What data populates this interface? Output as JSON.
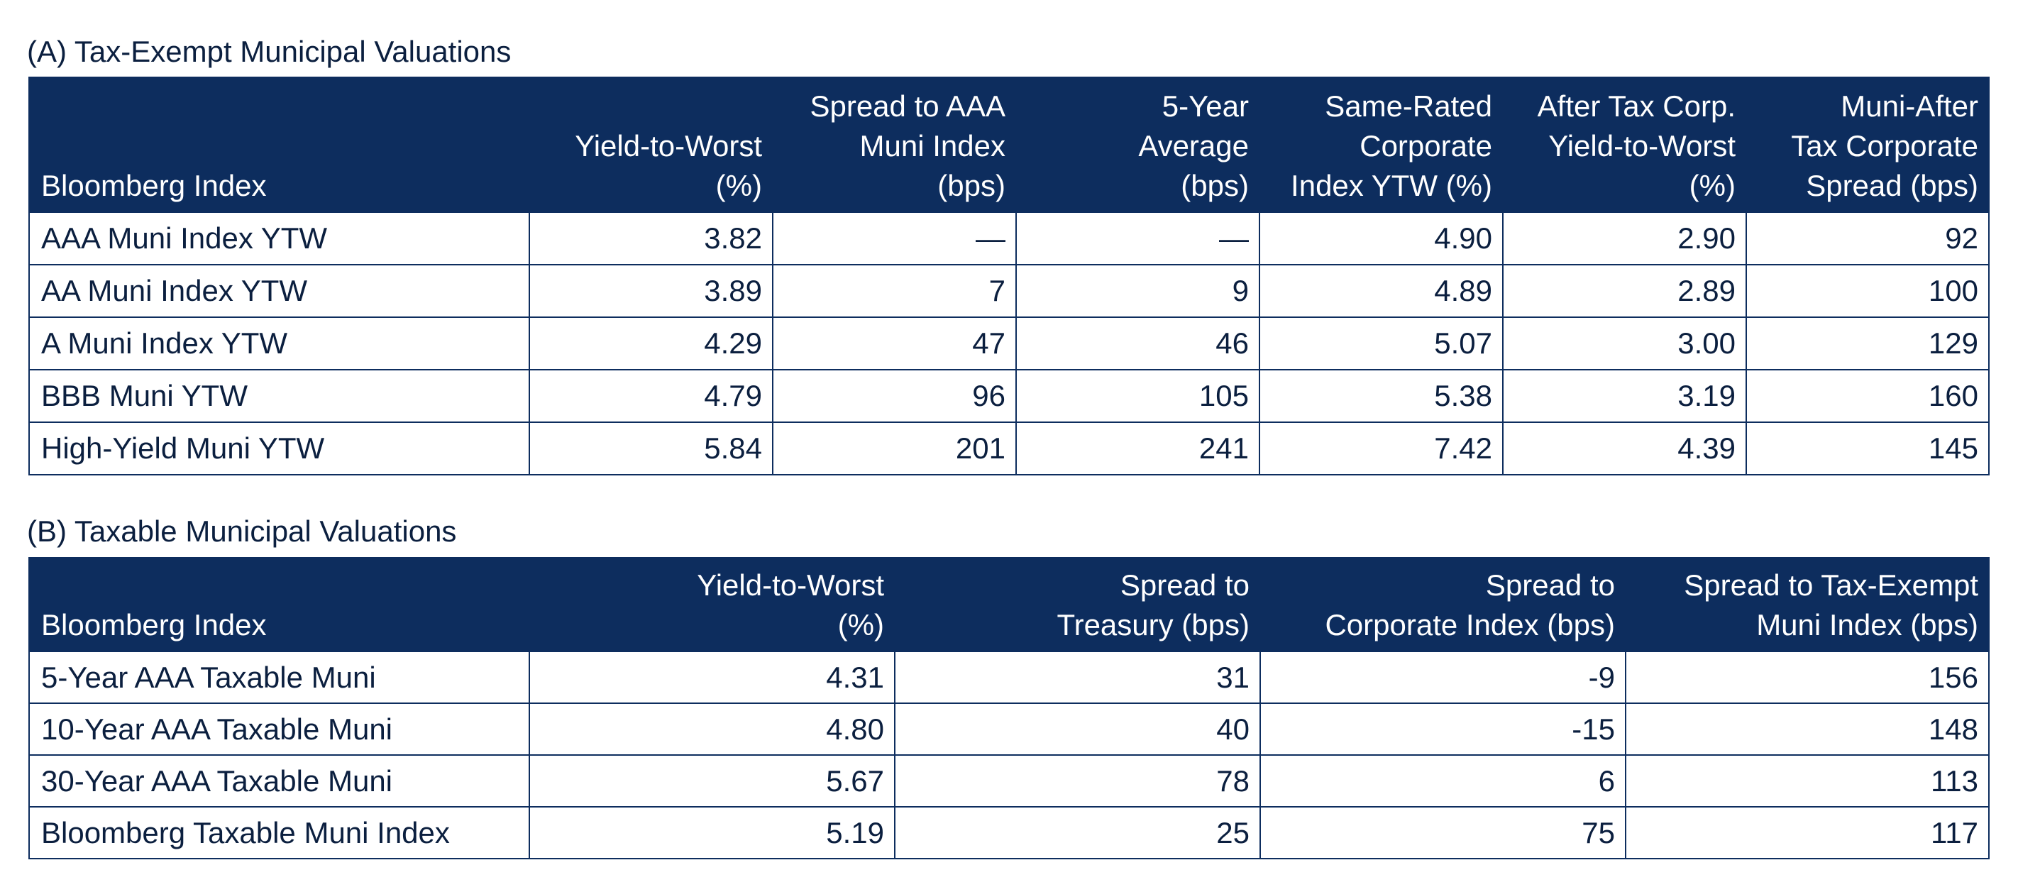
{
  "section_a": {
    "title": "(A) Tax-Exempt Municipal Valuations",
    "headers": [
      [
        "Bloomberg Index"
      ],
      [
        "Yield-to-Worst",
        "(%)"
      ],
      [
        "Spread to AAA",
        "Muni Index",
        "(bps)"
      ],
      [
        "5-Year",
        "Average",
        "(bps)"
      ],
      [
        "Same-Rated",
        "Corporate",
        "Index YTW (%)"
      ],
      [
        "After Tax Corp.",
        "Yield-to-Worst",
        "(%)"
      ],
      [
        "Muni-After",
        "Tax Corporate",
        "Spread (bps)"
      ]
    ],
    "rows": [
      [
        "AAA Muni Index YTW",
        "3.82",
        "—",
        "—",
        "4.90",
        "2.90",
        "92"
      ],
      [
        "AA Muni Index YTW",
        "3.89",
        "7",
        "9",
        "4.89",
        "2.89",
        "100"
      ],
      [
        "A Muni Index YTW",
        "4.29",
        "47",
        "46",
        "5.07",
        "3.00",
        "129"
      ],
      [
        "BBB Muni YTW",
        "4.79",
        "96",
        "105",
        "5.38",
        "3.19",
        "160"
      ],
      [
        "High-Yield Muni YTW",
        "5.84",
        "201",
        "241",
        "7.42",
        "4.39",
        "145"
      ]
    ]
  },
  "section_b": {
    "title": "(B) Taxable Municipal Valuations",
    "headers": [
      [
        "Bloomberg Index"
      ],
      [
        "Yield-to-Worst",
        "(%)"
      ],
      [
        "Spread to",
        "Treasury (bps)"
      ],
      [
        "Spread to",
        "Corporate Index (bps)"
      ],
      [
        "Spread to Tax-Exempt",
        "Muni Index (bps)"
      ]
    ],
    "rows": [
      [
        "5-Year AAA Taxable Muni",
        "4.31",
        "31",
        "-9",
        "156"
      ],
      [
        "10-Year AAA Taxable Muni",
        "4.80",
        "40",
        "-15",
        "148"
      ],
      [
        "30-Year AAA Taxable Muni",
        "5.67",
        "78",
        "6",
        "113"
      ],
      [
        "Bloomberg Taxable Muni Index",
        "5.19",
        "25",
        "75",
        "117"
      ]
    ]
  },
  "colors": {
    "header_bg": "#0d2d5e",
    "header_text": "#ffffff",
    "body_text": "#0b1f3f",
    "border": "#0d2d5e"
  },
  "chart_data": [
    {
      "type": "table",
      "title": "(A) Tax-Exempt Municipal Valuations",
      "columns": [
        "Bloomberg Index",
        "Yield-to-Worst (%)",
        "Spread to AAA Muni Index (bps)",
        "5-Year Average (bps)",
        "Same-Rated Corporate Index YTW (%)",
        "After Tax Corp. Yield-to-Worst (%)",
        "Muni-After Tax Corporate Spread (bps)"
      ],
      "rows": [
        [
          "AAA Muni Index YTW",
          3.82,
          null,
          null,
          4.9,
          2.9,
          92
        ],
        [
          "AA Muni Index YTW",
          3.89,
          7,
          9,
          4.89,
          2.89,
          100
        ],
        [
          "A Muni Index YTW",
          4.29,
          47,
          46,
          5.07,
          3.0,
          129
        ],
        [
          "BBB Muni YTW",
          4.79,
          96,
          105,
          5.38,
          3.19,
          160
        ],
        [
          "High-Yield Muni YTW",
          5.84,
          201,
          241,
          7.42,
          4.39,
          145
        ]
      ]
    },
    {
      "type": "table",
      "title": "(B) Taxable Municipal Valuations",
      "columns": [
        "Bloomberg Index",
        "Yield-to-Worst (%)",
        "Spread to Treasury (bps)",
        "Spread to Corporate Index (bps)",
        "Spread to Tax-Exempt Muni Index (bps)"
      ],
      "rows": [
        [
          "5-Year AAA Taxable Muni",
          4.31,
          31,
          -9,
          156
        ],
        [
          "10-Year AAA Taxable Muni",
          4.8,
          40,
          -15,
          148
        ],
        [
          "30-Year AAA Taxable Muni",
          5.67,
          78,
          6,
          113
        ],
        [
          "Bloomberg Taxable Muni Index",
          5.19,
          25,
          75,
          117
        ]
      ]
    }
  ]
}
